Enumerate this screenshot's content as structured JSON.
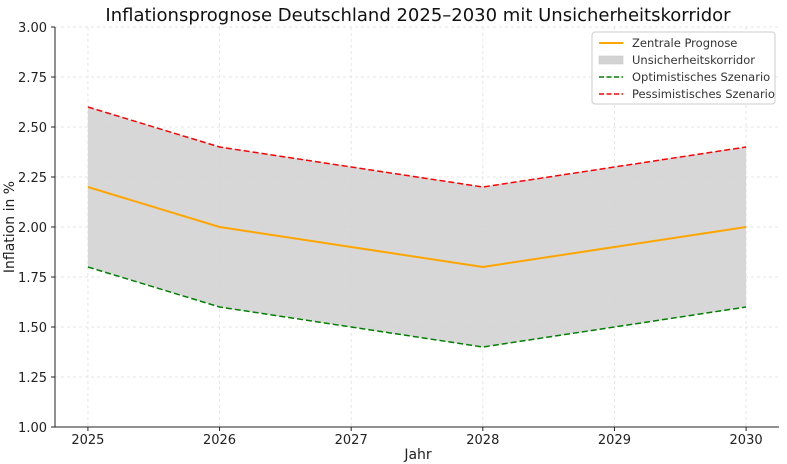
{
  "chart_data": {
    "type": "line",
    "title": "Inflationsprognose Deutschland 2025–2030 mit Unsicherheitskorridor",
    "xlabel": "Jahr",
    "ylabel": "Inflation in %",
    "x": [
      2025,
      2026,
      2027,
      2028,
      2029,
      2030
    ],
    "x_tick_labels": [
      "2025",
      "2026",
      "2027",
      "2028",
      "2029",
      "2030"
    ],
    "ylim": [
      1.0,
      3.0
    ],
    "y_ticks": [
      1.0,
      1.25,
      1.5,
      1.75,
      2.0,
      2.25,
      2.5,
      2.75,
      3.0
    ],
    "y_tick_labels": [
      "1.00",
      "1.25",
      "1.50",
      "1.75",
      "2.00",
      "2.25",
      "2.50",
      "2.75",
      "3.00"
    ],
    "grid": true,
    "legend_position": "top-right",
    "series": [
      {
        "name": "Zentrale Prognose",
        "values": [
          2.2,
          2.0,
          1.9,
          1.8,
          1.9,
          2.0
        ],
        "color": "#FFA500",
        "style": "solid"
      },
      {
        "name": "Optimistisches Szenario",
        "values": [
          1.8,
          1.6,
          1.5,
          1.4,
          1.5,
          1.6
        ],
        "color": "#008000",
        "style": "dashed"
      },
      {
        "name": "Pessimistisches Szenario",
        "values": [
          2.6,
          2.4,
          2.3,
          2.2,
          2.3,
          2.4
        ],
        "color": "#FF0000",
        "style": "dashed"
      }
    ],
    "band": {
      "name": "Unsicherheitskorridor",
      "lower_series": "Optimistisches Szenario",
      "upper_series": "Pessimistisches Szenario",
      "color": "#d3d3d3"
    },
    "legend_items": [
      {
        "label": "Zentrale Prognose",
        "kind": "line",
        "color": "#FFA500",
        "style": "solid"
      },
      {
        "label": "Unsicherheitskorridor",
        "kind": "patch",
        "color": "#d3d3d3"
      },
      {
        "label": "Optimistisches Szenario",
        "kind": "line",
        "color": "#008000",
        "style": "dashed"
      },
      {
        "label": "Pessimistisches Szenario",
        "kind": "line",
        "color": "#FF0000",
        "style": "dashed"
      }
    ]
  }
}
